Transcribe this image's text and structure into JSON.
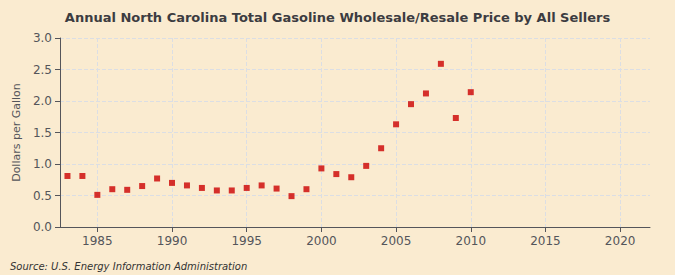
{
  "chart_data": {
    "type": "scatter",
    "title": "Annual North Carolina Total Gasoline Wholesale/Resale Price by All Sellers",
    "ylabel": "Dollars per Gallon",
    "annotations": [
      "Source: U.S. Energy Information Administration"
    ],
    "background_color": "#faebd0",
    "color": "#cc0000",
    "marker": "square",
    "grid": true,
    "x": [
      1983,
      1984,
      1985,
      1986,
      1987,
      1988,
      1989,
      1990,
      1991,
      1992,
      1993,
      1994,
      1995,
      1996,
      1997,
      1998,
      1999,
      2000,
      2001,
      2002,
      2003,
      2004,
      2005,
      2006,
      2007,
      2008,
      2009,
      2010
    ],
    "values": [
      0.81,
      0.81,
      0.51,
      0.6,
      0.59,
      0.65,
      0.77,
      0.7,
      0.66,
      0.62,
      0.58,
      0.58,
      0.62,
      0.66,
      0.61,
      0.49,
      0.6,
      0.93,
      0.84,
      0.79,
      0.97,
      1.25,
      1.63,
      1.95,
      2.12,
      2.59,
      1.73,
      2.14
    ],
    "xlim": [
      1982.5,
      2022
    ],
    "xticks": [
      1985,
      1990,
      1995,
      2000,
      2005,
      2010,
      2015,
      2020
    ],
    "ylim": [
      0.0,
      3.0
    ],
    "yticks": [
      {
        "value": 0,
        "label": "0.0"
      },
      0.5,
      {
        "value": 1,
        "label": "1.0"
      },
      1.5,
      {
        "value": 2,
        "label": "2.0"
      },
      2.5,
      {
        "value": 3,
        "label": "3.0"
      }
    ]
  }
}
